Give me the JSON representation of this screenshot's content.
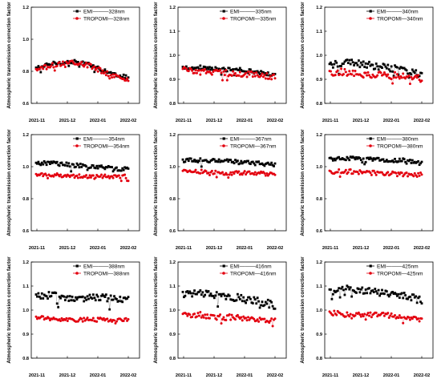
{
  "colors": {
    "emi": "#000000",
    "tropomi": "#e3000f",
    "axis": "#000000"
  },
  "chart_data": [
    {
      "type": "scatter",
      "panel": 1,
      "xlabel": "",
      "ylabel": "Atmospheric transmission correction factor",
      "ylim": [
        0.6,
        1.2
      ],
      "yticks": [
        "0.6",
        "0.8",
        "1.0",
        "1.2"
      ],
      "xticks": [
        "2021-11",
        "2021-12",
        "2022-01",
        "2022-02"
      ],
      "legend_position": "top-right",
      "series": [
        {
          "name": "EMI———328nm",
          "marker": "square",
          "level": [
            0.82,
            0.85,
            0.86,
            0.84,
            0.79,
            0.76
          ],
          "jitter": 0.012
        },
        {
          "name": "TROPOMI—328nm",
          "marker": "circle",
          "level": [
            0.81,
            0.84,
            0.86,
            0.83,
            0.78,
            0.75
          ],
          "jitter": 0.015
        }
      ]
    },
    {
      "type": "scatter",
      "panel": 2,
      "xlabel": "",
      "ylabel": "Atmospheric transmission correction factor",
      "ylim": [
        0.8,
        1.2
      ],
      "yticks": [
        "0.8",
        "0.9",
        "1.0",
        "1.1",
        "1.2"
      ],
      "xticks": [
        "2021-11",
        "2021-12",
        "2022-01",
        "2022-02"
      ],
      "legend_position": "top-right",
      "series": [
        {
          "name": "EMI———335nm",
          "marker": "square",
          "level": [
            0.95,
            0.95,
            0.94,
            0.94,
            0.93,
            0.92
          ],
          "jitter": 0.008
        },
        {
          "name": "TROPOMI—335nm",
          "marker": "circle",
          "level": [
            0.94,
            0.93,
            0.93,
            0.92,
            0.92,
            0.91
          ],
          "jitter": 0.012
        }
      ]
    },
    {
      "type": "scatter",
      "panel": 3,
      "xlabel": "",
      "ylabel": "Atmospheric transmission correction factor",
      "ylim": [
        0.8,
        1.2
      ],
      "yticks": [
        "0.8",
        "0.9",
        "1.0",
        "1.1",
        "1.2"
      ],
      "xticks": [
        "2021-11",
        "2021-12",
        "2022-01",
        "2022-02"
      ],
      "legend_position": "top-right",
      "series": [
        {
          "name": "EMI———340nm",
          "marker": "square",
          "level": [
            0.96,
            0.97,
            0.96,
            0.95,
            0.94,
            0.92
          ],
          "jitter": 0.014
        },
        {
          "name": "TROPOMI—340nm",
          "marker": "circle",
          "level": [
            0.93,
            0.93,
            0.92,
            0.92,
            0.91,
            0.9
          ],
          "jitter": 0.016
        }
      ]
    },
    {
      "type": "scatter",
      "panel": 4,
      "xlabel": "",
      "ylabel": "Atmospheric transmission correction factor",
      "ylim": [
        0.6,
        1.2
      ],
      "yticks": [
        "0.6",
        "0.8",
        "1.0",
        "1.2"
      ],
      "xticks": [
        "2021-11",
        "2021-12",
        "2022-01",
        "2022-02"
      ],
      "legend_position": "top-right",
      "series": [
        {
          "name": "EMI———354nm",
          "marker": "square",
          "level": [
            1.02,
            1.02,
            1.01,
            1.0,
            0.99,
            0.98
          ],
          "jitter": 0.014
        },
        {
          "name": "TROPOMI—354nm",
          "marker": "circle",
          "level": [
            0.95,
            0.95,
            0.94,
            0.94,
            0.94,
            0.94
          ],
          "jitter": 0.012
        }
      ]
    },
    {
      "type": "scatter",
      "panel": 5,
      "xlabel": "",
      "ylabel": "Atmospheric transmission correction factor",
      "ylim": [
        0.6,
        1.2
      ],
      "yticks": [
        "0.6",
        "0.8",
        "1.0",
        "1.2"
      ],
      "xticks": [
        "2021-11",
        "2021-12",
        "2022-01",
        "2022-02"
      ],
      "legend_position": "top-right",
      "series": [
        {
          "name": "EMI———367nm",
          "marker": "square",
          "level": [
            1.04,
            1.04,
            1.04,
            1.03,
            1.02,
            1.01
          ],
          "jitter": 0.014
        },
        {
          "name": "TROPOMI—367nm",
          "marker": "circle",
          "level": [
            0.97,
            0.97,
            0.96,
            0.96,
            0.96,
            0.95
          ],
          "jitter": 0.012
        }
      ]
    },
    {
      "type": "scatter",
      "panel": 6,
      "xlabel": "",
      "ylabel": "Atmospheric transmission correction factor",
      "ylim": [
        0.6,
        1.2
      ],
      "yticks": [
        "0.6",
        "0.8",
        "1.0",
        "1.2"
      ],
      "xticks": [
        "2021-11",
        "2021-12",
        "2022-01",
        "2022-02"
      ],
      "legend_position": "top-right",
      "series": [
        {
          "name": "EMI———380nm",
          "marker": "square",
          "level": [
            1.05,
            1.05,
            1.05,
            1.04,
            1.04,
            1.02
          ],
          "jitter": 0.012
        },
        {
          "name": "TROPOMI—380nm",
          "marker": "circle",
          "level": [
            0.97,
            0.97,
            0.96,
            0.96,
            0.95,
            0.95
          ],
          "jitter": 0.014
        }
      ]
    },
    {
      "type": "scatter",
      "panel": 7,
      "xlabel": "",
      "ylabel": "Atmospheric transmission correction factor",
      "ylim": [
        0.8,
        1.2
      ],
      "yticks": [
        "0.8",
        "0.9",
        "1.0",
        "1.1",
        "1.2"
      ],
      "xticks": [
        "2021-11",
        "2021-12",
        "2022-01",
        "2022-02"
      ],
      "legend_position": "top-right",
      "series": [
        {
          "name": "EMI———388nm",
          "marker": "square",
          "level": [
            1.06,
            1.06,
            1.05,
            1.05,
            1.05,
            1.04
          ],
          "jitter": 0.015
        },
        {
          "name": "TROPOMI—388nm",
          "marker": "circle",
          "level": [
            0.97,
            0.96,
            0.96,
            0.96,
            0.96,
            0.96
          ],
          "jitter": 0.008
        }
      ]
    },
    {
      "type": "scatter",
      "panel": 8,
      "xlabel": "",
      "ylabel": "Atmospheric transmission correction factor",
      "ylim": [
        0.8,
        1.2
      ],
      "yticks": [
        "0.8",
        "0.9",
        "1.0",
        "1.1",
        "1.2"
      ],
      "xticks": [
        "2021-11",
        "2021-12",
        "2022-01",
        "2022-02"
      ],
      "legend_position": "top-right",
      "series": [
        {
          "name": "EMI———416nm",
          "marker": "square",
          "level": [
            1.07,
            1.07,
            1.06,
            1.05,
            1.04,
            1.02
          ],
          "jitter": 0.016
        },
        {
          "name": "TROPOMI—416nm",
          "marker": "circle",
          "level": [
            0.98,
            0.98,
            0.97,
            0.97,
            0.96,
            0.96
          ],
          "jitter": 0.012
        }
      ]
    },
    {
      "type": "scatter",
      "panel": 9,
      "xlabel": "",
      "ylabel": "Atmospheric transmission correction factor",
      "ylim": [
        0.8,
        1.2
      ],
      "yticks": [
        "0.8",
        "0.9",
        "1.0",
        "1.1",
        "1.2"
      ],
      "xticks": [
        "2021-11",
        "2021-12",
        "2022-01",
        "2022-02"
      ],
      "legend_position": "top-right",
      "series": [
        {
          "name": "EMI———425nm",
          "marker": "square",
          "level": [
            1.08,
            1.09,
            1.08,
            1.07,
            1.06,
            1.04
          ],
          "jitter": 0.016
        },
        {
          "name": "TROPOMI—425nm",
          "marker": "circle",
          "level": [
            0.99,
            0.98,
            0.98,
            0.98,
            0.97,
            0.96
          ],
          "jitter": 0.01
        }
      ]
    }
  ]
}
